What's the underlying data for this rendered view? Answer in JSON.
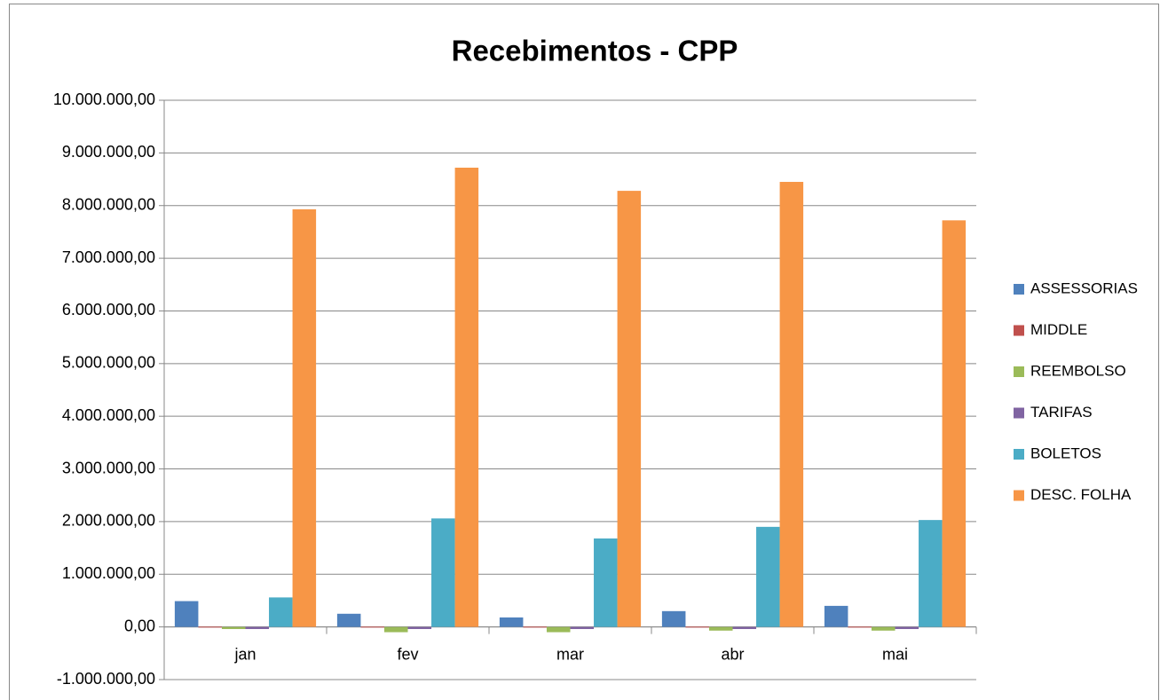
{
  "chart_data": {
    "type": "bar",
    "title": "Recebimentos - CPP",
    "categories": [
      "jan",
      "fev",
      "mar",
      "abr",
      "mai"
    ],
    "series": [
      {
        "name": "ASSESSORIAS",
        "color": "#4f81bd",
        "values": [
          490000,
          250000,
          180000,
          300000,
          400000
        ]
      },
      {
        "name": "MIDDLE",
        "color": "#c0504d",
        "values": [
          5000,
          5000,
          5000,
          5000,
          5000
        ]
      },
      {
        "name": "REEMBOLSO",
        "color": "#9bbb59",
        "values": [
          -40000,
          -100000,
          -100000,
          -70000,
          -70000
        ]
      },
      {
        "name": "TARIFAS",
        "color": "#8064a2",
        "values": [
          -40000,
          -40000,
          -40000,
          -40000,
          -40000
        ]
      },
      {
        "name": "BOLETOS",
        "color": "#4bacc6",
        "values": [
          560000,
          2060000,
          1680000,
          1900000,
          2030000
        ]
      },
      {
        "name": "DESC. FOLHA",
        "color": "#f79646",
        "values": [
          7930000,
          8720000,
          8280000,
          8450000,
          7720000
        ]
      }
    ],
    "ylim": [
      -1000000,
      10000000
    ],
    "yticks": [
      {
        "value": -1000000,
        "label": "-1.000.000,00"
      },
      {
        "value": 0,
        "label": "0,00"
      },
      {
        "value": 1000000,
        "label": "1.000.000,00"
      },
      {
        "value": 2000000,
        "label": "2.000.000,00"
      },
      {
        "value": 3000000,
        "label": "3.000.000,00"
      },
      {
        "value": 4000000,
        "label": "4.000.000,00"
      },
      {
        "value": 5000000,
        "label": "5.000.000,00"
      },
      {
        "value": 6000000,
        "label": "6.000.000,00"
      },
      {
        "value": 7000000,
        "label": "7.000.000,00"
      },
      {
        "value": 8000000,
        "label": "8.000.000,00"
      },
      {
        "value": 9000000,
        "label": "9.000.000,00"
      },
      {
        "value": 10000000,
        "label": "10.000.000,00"
      }
    ],
    "grid": true,
    "legend": "right"
  }
}
